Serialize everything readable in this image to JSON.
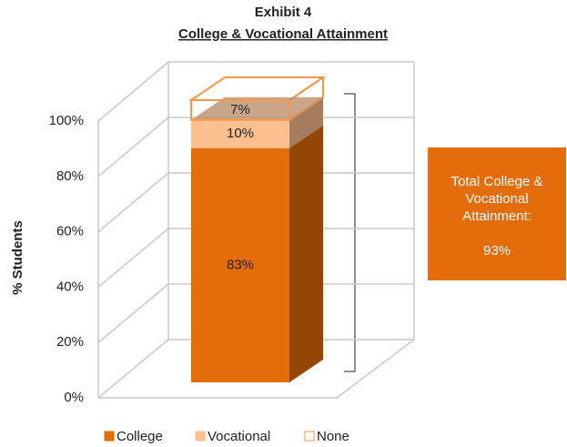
{
  "chart_data": {
    "type": "bar",
    "stacked": true,
    "three_d": true,
    "title": "Exhibit 4",
    "subtitle": "College & Vocational Attainment",
    "y_label": "% Students",
    "categories": [
      null
    ],
    "ylim": [
      0,
      100
    ],
    "yticks": [
      {
        "value": 0,
        "label": "0%"
      },
      {
        "value": 20,
        "label": "20%"
      },
      {
        "value": 40,
        "label": "40%"
      },
      {
        "value": 60,
        "label": "60%"
      },
      {
        "value": 80,
        "label": "80%"
      },
      {
        "value": 100,
        "label": "100%"
      }
    ],
    "grid": true,
    "series": [
      {
        "name": "College",
        "color": "#E46C0A",
        "values": [
          83
        ],
        "value_labels": [
          "83%"
        ]
      },
      {
        "name": "Vocational",
        "color": "#FAC090",
        "values": [
          10
        ],
        "value_labels": [
          "10%"
        ]
      },
      {
        "name": "None",
        "color": "#F79646",
        "hollow": true,
        "values": [
          7
        ],
        "value_labels": [
          "7%"
        ]
      }
    ],
    "legend": "bottom",
    "annotation": {
      "text": "Total College & Vocational Attainment:",
      "value_label": "93%",
      "color": "#E46C0A"
    }
  }
}
